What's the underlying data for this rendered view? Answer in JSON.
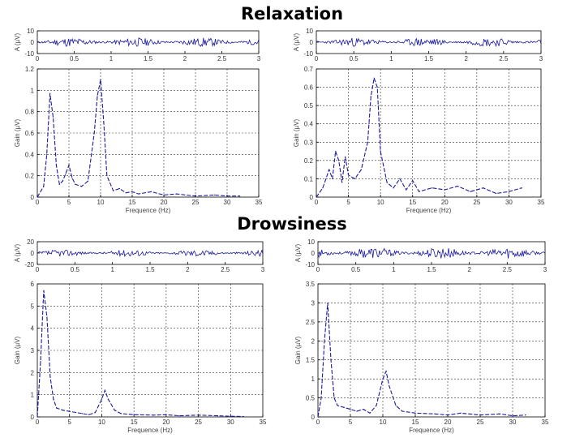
{
  "titles": {
    "relaxation": "Relaxation",
    "drowsiness": "Drowsiness"
  },
  "chart_data": [
    {
      "id": "relax-left-time",
      "type": "line",
      "ylabel": "A (µV)",
      "xlim": [
        0,
        3
      ],
      "ylim": [
        -10,
        10
      ],
      "xticks": [
        "0",
        "0.5",
        "1",
        "1.5",
        "2",
        "2.5",
        "3"
      ],
      "yticks": [
        "10",
        "0",
        "-10"
      ],
      "amplitude": 4,
      "seed": 11,
      "grid": false
    },
    {
      "id": "relax-left-psd",
      "type": "line",
      "xlabel": "Frequence (Hz)",
      "ylabel": "Gain (µV)",
      "xlim": [
        0,
        35
      ],
      "ylim": [
        0,
        1.2
      ],
      "xticks": [
        "0",
        "5",
        "10",
        "15",
        "20",
        "25",
        "30",
        "35"
      ],
      "yticks": [
        "0",
        "0.2",
        "0.4",
        "0.6",
        "0.8",
        "1",
        "1.2"
      ],
      "grid": true,
      "x": [
        0,
        1,
        1.5,
        2,
        2.5,
        3,
        3.5,
        4,
        4.5,
        5,
        5.5,
        6,
        7,
        8,
        9,
        9.5,
        10,
        10.5,
        11,
        12,
        13,
        14,
        15,
        16,
        18,
        20,
        22,
        25,
        28,
        30,
        32
      ],
      "y": [
        0,
        0.1,
        0.4,
        0.97,
        0.75,
        0.3,
        0.12,
        0.15,
        0.22,
        0.3,
        0.18,
        0.12,
        0.1,
        0.15,
        0.6,
        0.95,
        1.1,
        0.7,
        0.2,
        0.06,
        0.08,
        0.04,
        0.05,
        0.03,
        0.05,
        0.02,
        0.03,
        0.01,
        0.02,
        0.01,
        0.01
      ]
    },
    {
      "id": "relax-right-time",
      "type": "line",
      "ylabel": "A (µV)",
      "xlim": [
        0,
        3
      ],
      "ylim": [
        -10,
        10
      ],
      "xticks": [
        "0",
        "0.5",
        "1",
        "1.5",
        "2",
        "2.5",
        "3"
      ],
      "yticks": [
        "10",
        "0",
        "-10"
      ],
      "amplitude": 4,
      "seed": 23,
      "grid": false
    },
    {
      "id": "relax-right-psd",
      "type": "line",
      "xlabel": "Frequence (Hz)",
      "ylabel": "Gain (µV)",
      "xlim": [
        0,
        35
      ],
      "ylim": [
        0,
        0.7
      ],
      "xticks": [
        "0",
        "5",
        "10",
        "15",
        "20",
        "25",
        "30",
        "35"
      ],
      "yticks": [
        "0",
        "0.1",
        "0.2",
        "0.3",
        "0.4",
        "0.5",
        "0.6",
        "0.7"
      ],
      "grid": true,
      "x": [
        0,
        1,
        2,
        2.5,
        3,
        3.5,
        4,
        4.5,
        5,
        6,
        7,
        8,
        8.5,
        9,
        9.5,
        10,
        11,
        12,
        13,
        14,
        15,
        16,
        18,
        20,
        22,
        24,
        26,
        28,
        30,
        32
      ],
      "y": [
        0,
        0.05,
        0.15,
        0.1,
        0.25,
        0.2,
        0.08,
        0.22,
        0.12,
        0.1,
        0.15,
        0.3,
        0.55,
        0.65,
        0.6,
        0.25,
        0.08,
        0.05,
        0.1,
        0.04,
        0.09,
        0.03,
        0.05,
        0.04,
        0.06,
        0.03,
        0.05,
        0.02,
        0.03,
        0.05
      ]
    },
    {
      "id": "drow-left-time",
      "type": "line",
      "ylabel": "A (µV)",
      "xlim": [
        0,
        3
      ],
      "ylim": [
        -20,
        20
      ],
      "xticks": [
        "0",
        "0.5",
        "1",
        "1.5",
        "2",
        "2.5",
        "3"
      ],
      "yticks": [
        "20",
        "0",
        "-20"
      ],
      "amplitude": 6,
      "seed": 37,
      "grid": false
    },
    {
      "id": "drow-left-psd",
      "type": "line",
      "xlabel": "Frequence (Hz)",
      "ylabel": "Gain (µV)",
      "xlim": [
        0,
        35
      ],
      "ylim": [
        0,
        6
      ],
      "xticks": [
        "0",
        "5",
        "10",
        "15",
        "20",
        "25",
        "30",
        "35"
      ],
      "yticks": [
        "0",
        "1",
        "2",
        "3",
        "4",
        "5",
        "6"
      ],
      "grid": true,
      "x": [
        0,
        0.5,
        1,
        1.5,
        2,
        2.5,
        3,
        4,
        5,
        6,
        7,
        8,
        9,
        10,
        10.5,
        11,
        12,
        13,
        15,
        18,
        20,
        22,
        25,
        28,
        30,
        32
      ],
      "y": [
        0,
        2.5,
        5.7,
        4.5,
        1.8,
        0.8,
        0.4,
        0.3,
        0.25,
        0.2,
        0.15,
        0.1,
        0.2,
        0.8,
        1.2,
        0.8,
        0.3,
        0.15,
        0.1,
        0.08,
        0.1,
        0.05,
        0.08,
        0.05,
        0.03,
        0.02
      ]
    },
    {
      "id": "drow-right-time",
      "type": "line",
      "ylabel": "A (µV)",
      "xlim": [
        0,
        3
      ],
      "ylim": [
        -10,
        10
      ],
      "xticks": [
        "0",
        "0.5",
        "1",
        "1.5",
        "2",
        "2.5",
        "3"
      ],
      "yticks": [
        "10",
        "0",
        "-10"
      ],
      "amplitude": 5,
      "seed": 53,
      "grid": false
    },
    {
      "id": "drow-right-psd",
      "type": "line",
      "xlabel": "Frequence (Hz)",
      "ylabel": "Gain (µV)",
      "xlim": [
        0,
        35
      ],
      "ylim": [
        0,
        3.5
      ],
      "xticks": [
        "0",
        "5",
        "10",
        "15",
        "20",
        "25",
        "30",
        "35"
      ],
      "yticks": [
        "0",
        "0.5",
        "1",
        "1.5",
        "2",
        "2.5",
        "3",
        "3.5"
      ],
      "grid": true,
      "x": [
        0,
        0.5,
        1,
        1.5,
        2,
        2.5,
        3,
        4,
        5,
        6,
        7,
        8,
        9,
        10,
        10.5,
        11,
        12,
        13,
        15,
        18,
        20,
        22,
        25,
        28,
        30,
        32
      ],
      "y": [
        0,
        0.5,
        2.0,
        3.0,
        1.5,
        0.5,
        0.3,
        0.25,
        0.2,
        0.15,
        0.2,
        0.1,
        0.3,
        1.0,
        1.2,
        0.8,
        0.3,
        0.15,
        0.1,
        0.08,
        0.05,
        0.1,
        0.05,
        0.08,
        0.03,
        0.05
      ]
    }
  ],
  "colors": {
    "line": "#1a1a9c",
    "axis": "#000000",
    "grid": "#333333"
  }
}
